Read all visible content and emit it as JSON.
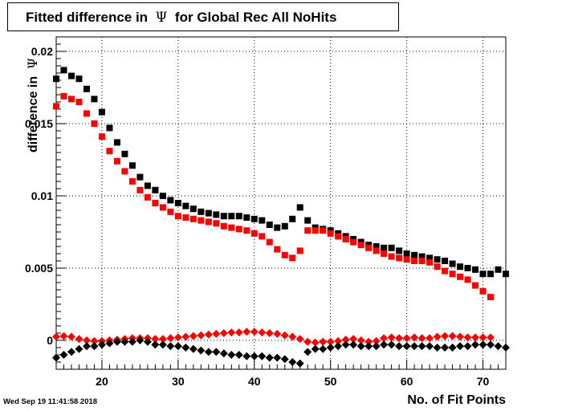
{
  "title": {
    "prefix": "Fitted difference in",
    "symbol": "Ψ",
    "suffix": "for Global Rec All NoHits"
  },
  "timestamp": "Wed Sep 19 11:41:58 2018",
  "chart_data": {
    "type": "scatter",
    "xlabel": "No. of Fit Points",
    "ylabel": {
      "text": "difference in",
      "symbol": "Ψ"
    },
    "xlim": [
      14,
      73
    ],
    "ylim": [
      -0.002,
      0.021
    ],
    "x_ticks": [
      20,
      30,
      40,
      50,
      60,
      70
    ],
    "y_ticks": [
      0,
      0.005,
      0.01,
      0.015,
      0.02
    ],
    "y_tick_labels": [
      "0",
      "0.005",
      "0.01",
      "0.015",
      "0.02"
    ],
    "grid": true,
    "series": [
      {
        "marker": "square",
        "color": "#000000",
        "x": [
          14,
          15,
          16,
          17,
          18,
          19,
          20,
          21,
          22,
          23,
          24,
          25,
          26,
          27,
          28,
          29,
          30,
          31,
          32,
          33,
          34,
          35,
          36,
          37,
          38,
          39,
          40,
          41,
          42,
          43,
          44,
          45,
          46,
          47,
          48,
          49,
          50,
          51,
          52,
          53,
          54,
          55,
          56,
          57,
          58,
          59,
          60,
          61,
          62,
          63,
          64,
          65,
          66,
          67,
          68,
          69,
          70,
          71,
          72,
          73
        ],
        "y": [
          0.0181,
          0.0187,
          0.0183,
          0.0181,
          0.0174,
          0.0167,
          0.0158,
          0.0147,
          0.0137,
          0.0129,
          0.0121,
          0.0113,
          0.0107,
          0.0104,
          0.01,
          0.0097,
          0.0095,
          0.0093,
          0.0091,
          0.0089,
          0.0088,
          0.0087,
          0.0086,
          0.0086,
          0.0086,
          0.0085,
          0.0084,
          0.0083,
          0.008,
          0.0078,
          0.0079,
          0.0084,
          0.0092,
          0.0083,
          0.0078,
          0.0077,
          0.0076,
          0.0074,
          0.0072,
          0.007,
          0.0068,
          0.0066,
          0.0065,
          0.0064,
          0.0064,
          0.0062,
          0.006,
          0.0059,
          0.0058,
          0.0057,
          0.0056,
          0.0055,
          0.0053,
          0.0051,
          0.005,
          0.0049,
          0.0046,
          0.0046,
          0.0049,
          0.0046
        ]
      },
      {
        "marker": "square",
        "color": "#ff0000",
        "x": [
          14,
          15,
          16,
          17,
          18,
          19,
          20,
          21,
          22,
          23,
          24,
          25,
          26,
          27,
          28,
          29,
          30,
          31,
          32,
          33,
          34,
          35,
          36,
          37,
          38,
          39,
          40,
          41,
          42,
          43,
          44,
          45,
          46,
          47,
          48,
          49,
          50,
          51,
          52,
          53,
          54,
          55,
          56,
          57,
          58,
          59,
          60,
          61,
          62,
          63,
          64,
          65,
          66,
          67,
          68,
          69,
          70,
          71
        ],
        "y": [
          0.0162,
          0.0169,
          0.0167,
          0.0165,
          0.0157,
          0.015,
          0.0141,
          0.0131,
          0.0124,
          0.0117,
          0.011,
          0.0104,
          0.0099,
          0.0095,
          0.0092,
          0.0089,
          0.0086,
          0.0085,
          0.0084,
          0.0083,
          0.0082,
          0.0081,
          0.0079,
          0.0078,
          0.0077,
          0.0076,
          0.0074,
          0.0072,
          0.0068,
          0.0063,
          0.0059,
          0.0057,
          0.0062,
          0.0076,
          0.0076,
          0.0076,
          0.0074,
          0.0072,
          0.007,
          0.0068,
          0.0066,
          0.0064,
          0.0062,
          0.006,
          0.0058,
          0.0057,
          0.0056,
          0.0055,
          0.0055,
          0.0054,
          0.0051,
          0.0048,
          0.0046,
          0.0044,
          0.0042,
          0.0038,
          0.0034,
          0.003
        ]
      },
      {
        "marker": "diamond",
        "color": "#ff0000",
        "x": [
          14,
          15,
          16,
          17,
          18,
          19,
          20,
          21,
          22,
          23,
          24,
          25,
          26,
          27,
          28,
          29,
          30,
          31,
          32,
          33,
          34,
          35,
          36,
          37,
          38,
          39,
          40,
          41,
          42,
          43,
          44,
          45,
          46,
          47,
          48,
          49,
          50,
          51,
          52,
          53,
          54,
          55,
          56,
          57,
          58,
          59,
          60,
          61,
          62,
          63,
          64,
          65,
          66,
          67,
          68,
          69,
          70,
          71
        ],
        "y": [
          0.00025,
          0.0003,
          0.00025,
          0.0001,
          0.0,
          -5e-05,
          -5e-05,
          0.0,
          5e-05,
          0.0001,
          0.00015,
          0.00015,
          0.00015,
          0.0001,
          0.0001,
          0.00015,
          0.0002,
          0.00025,
          0.0003,
          0.00035,
          0.0004,
          0.00045,
          0.0005,
          0.00055,
          0.00055,
          0.0006,
          0.0006,
          0.00055,
          0.0005,
          0.00045,
          0.00035,
          0.00025,
          0.0001,
          -0.0001,
          -0.00015,
          -0.0001,
          -0.0001,
          -5e-05,
          5e-05,
          0.0001,
          0.0,
          -0.0001,
          -5e-05,
          0.00015,
          0.0002,
          0.00015,
          0.00015,
          0.0002,
          0.00015,
          0.00015,
          0.00025,
          0.0003,
          0.0003,
          0.00025,
          0.0002,
          0.0002,
          0.0002,
          0.0002
        ]
      },
      {
        "marker": "diamond",
        "color": "#000000",
        "x": [
          14,
          15,
          16,
          17,
          18,
          19,
          20,
          21,
          22,
          23,
          24,
          25,
          26,
          27,
          28,
          29,
          30,
          31,
          32,
          33,
          34,
          35,
          36,
          37,
          38,
          39,
          40,
          41,
          42,
          43,
          44,
          45,
          46,
          47,
          48,
          49,
          50,
          51,
          52,
          53,
          54,
          55,
          56,
          57,
          58,
          59,
          60,
          61,
          62,
          63,
          64,
          65,
          66,
          67,
          68,
          69,
          70,
          71,
          72,
          73
        ],
        "y": [
          -0.0012,
          -0.001,
          -0.0008,
          -0.0006,
          -0.0004,
          -0.0004,
          -0.0003,
          -0.0002,
          -0.0001,
          -0.0001,
          -0.0001,
          0.0,
          -0.0001,
          -0.0003,
          -0.0003,
          -0.0004,
          -0.0004,
          -0.0005,
          -0.0006,
          -0.0007,
          -0.0008,
          -0.0008,
          -0.0009,
          -0.001,
          -0.001,
          -0.0011,
          -0.0011,
          -0.0011,
          -0.0012,
          -0.0012,
          -0.0013,
          -0.0015,
          -0.0016,
          -0.0008,
          -0.0006,
          -0.0006,
          -0.0005,
          -0.0004,
          -0.0003,
          -0.0003,
          -0.0004,
          -0.0004,
          -0.0004,
          -0.0003,
          -0.0003,
          -0.0004,
          -0.0004,
          -0.0004,
          -0.0004,
          -0.0004,
          -0.0005,
          -0.0005,
          -0.0005,
          -0.0004,
          -0.0004,
          -0.0003,
          -0.0003,
          -0.0003,
          -0.0004,
          -0.0005
        ]
      }
    ]
  }
}
